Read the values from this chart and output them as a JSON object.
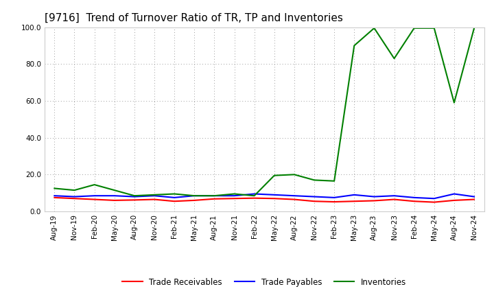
{
  "title": "[9716]  Trend of Turnover Ratio of TR, TP and Inventories",
  "ylim": [
    0.0,
    100.0
  ],
  "yticks": [
    0.0,
    20.0,
    40.0,
    60.0,
    80.0,
    100.0
  ],
  "x_labels": [
    "Aug-19",
    "Nov-19",
    "Feb-20",
    "May-20",
    "Aug-20",
    "Nov-20",
    "Feb-21",
    "May-21",
    "Aug-21",
    "Nov-21",
    "Feb-22",
    "May-22",
    "Aug-22",
    "Nov-22",
    "Feb-23",
    "May-23",
    "Aug-23",
    "Nov-23",
    "Feb-24",
    "May-24",
    "Aug-24",
    "Nov-24"
  ],
  "trade_receivables": [
    7.5,
    7.0,
    6.5,
    6.0,
    6.2,
    6.5,
    5.5,
    6.0,
    6.8,
    7.0,
    7.2,
    7.0,
    6.5,
    5.5,
    5.2,
    5.5,
    5.8,
    6.5,
    5.5,
    5.0,
    6.0,
    6.5
  ],
  "trade_payables": [
    8.5,
    8.0,
    8.5,
    8.5,
    8.0,
    8.5,
    7.5,
    8.5,
    8.5,
    8.5,
    9.5,
    9.0,
    8.5,
    8.0,
    7.5,
    9.0,
    8.0,
    8.5,
    7.5,
    7.0,
    9.5,
    8.0
  ],
  "inventories": [
    12.5,
    11.5,
    14.5,
    11.5,
    8.5,
    9.0,
    9.5,
    8.5,
    8.5,
    9.5,
    8.5,
    19.5,
    20.0,
    17.0,
    16.5,
    90.0,
    99.5,
    83.0,
    99.5,
    99.5,
    59.0,
    99.5
  ],
  "tr_color": "#ff0000",
  "tp_color": "#0000ff",
  "inv_color": "#008000",
  "bg_color": "#ffffff",
  "grid_color": "#999999",
  "title_fontsize": 11,
  "tick_fontsize": 7.5,
  "legend_fontsize": 8.5,
  "line_width": 1.5
}
